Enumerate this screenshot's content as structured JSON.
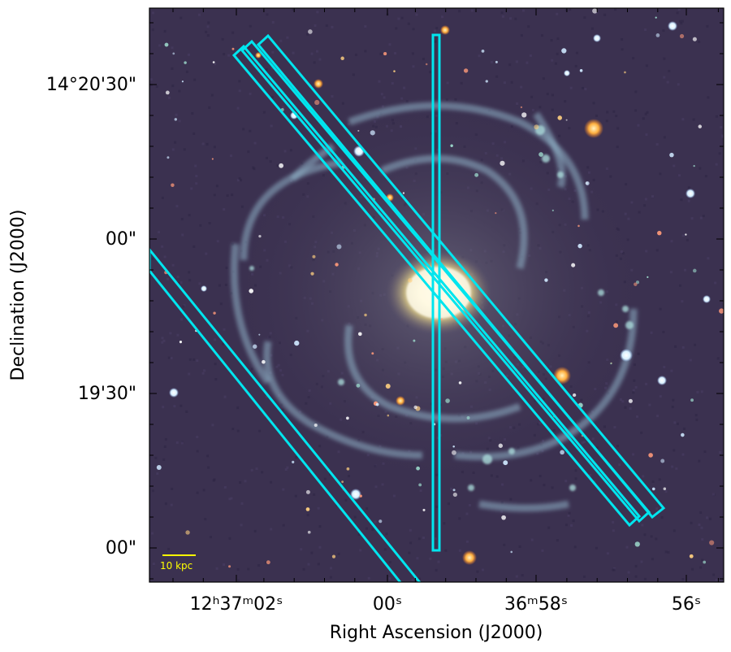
{
  "figure": {
    "axes": {
      "xlabel": "Right Ascension (J2000)",
      "ylabel": "Declination (J2000)",
      "x_ticks": [
        {
          "label": "12ʰ37ᵐ02ˢ"
        },
        {
          "label": "00ˢ"
        },
        {
          "label": "36ᵐ58ˢ"
        },
        {
          "label": "56ˢ"
        }
      ],
      "y_ticks": [
        {
          "label": "14°20'30\""
        },
        {
          "label": "00\""
        },
        {
          "label": "19'30\""
        },
        {
          "label": "00\""
        }
      ]
    },
    "scalebar": {
      "label": "10 kpc",
      "color": "#ffff00"
    },
    "overlay": {
      "slit_color": "#00e5ee",
      "slit_count": 5
    },
    "image": {
      "description_colors": {
        "background": "#3a2f4f",
        "bulge": "#fff3c0",
        "arms": "#8fb0c8"
      }
    }
  }
}
